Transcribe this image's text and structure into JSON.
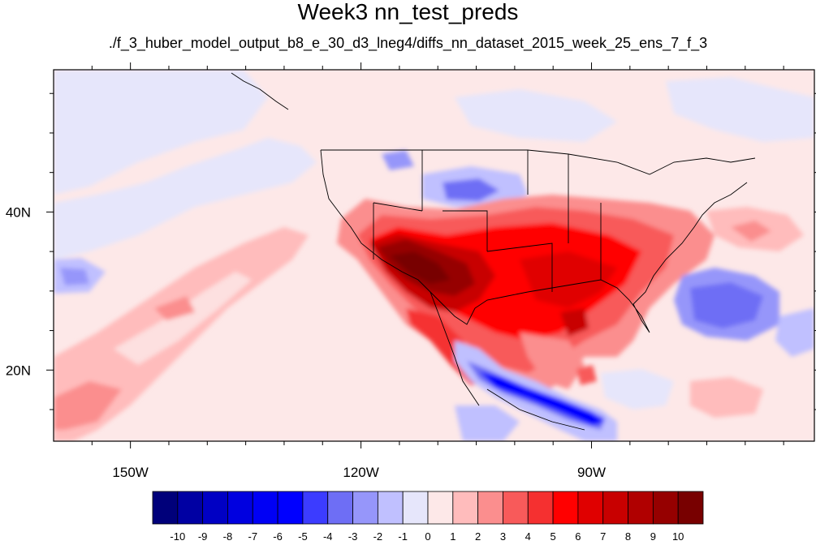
{
  "title": "Week3 nn_test_preds",
  "subtitle": "./f_3_huber_model_output_b8_e_30_d3_lneg4/diffs_nn_dataset_2015_week_25_ens_7_f_3",
  "map": {
    "projection": "cylindrical equidistant",
    "lon_range": [
      -160,
      -61
    ],
    "lat_range": [
      11,
      58
    ],
    "x_ticks": [
      {
        "lon": -150,
        "label": "150W"
      },
      {
        "lon": -120,
        "label": "120W"
      },
      {
        "lon": -90,
        "label": "90W"
      }
    ],
    "y_ticks": [
      {
        "lat": 20,
        "label": "20N"
      },
      {
        "lat": 40,
        "label": "40N"
      }
    ],
    "regions": [
      {
        "name": "pacific-positive-band",
        "value": 2,
        "lon": -138,
        "lat": 24
      },
      {
        "name": "southwest-us-max",
        "value": 9,
        "lon": -112,
        "lat": 34
      },
      {
        "name": "central-us-warm",
        "value": 6,
        "lon": -96,
        "lat": 35
      },
      {
        "name": "southeast-us-warm",
        "value": 6,
        "lon": -90,
        "lat": 31
      },
      {
        "name": "north-plains-negative",
        "value": -4,
        "lon": -107,
        "lat": 44
      },
      {
        "name": "central-america-negative",
        "value": -8,
        "lon": -94,
        "lat": 17
      },
      {
        "name": "atlantic-negative",
        "value": -4,
        "lon": -73,
        "lat": 30
      },
      {
        "name": "eastern-pacific-negative",
        "value": -2,
        "lon": -157,
        "lat": 34
      }
    ]
  },
  "colorbar": {
    "labels": [
      "-10",
      "-9",
      "-8",
      "-7",
      "-6",
      "-5",
      "-4",
      "-3",
      "-2",
      "-1",
      "0",
      "1",
      "2",
      "3",
      "4",
      "5",
      "6",
      "7",
      "8",
      "9",
      "10"
    ],
    "colors": [
      "#00007a",
      "#0000a3",
      "#0000c4",
      "#0000e0",
      "#0000f5",
      "#0000ff",
      "#3c3cff",
      "#6e6ef5",
      "#9696fa",
      "#c0c0ff",
      "#e6e6fb",
      "#fde8e8",
      "#ffbcbc",
      "#fb8e8e",
      "#f85a5a",
      "#f53030",
      "#ff0000",
      "#e00000",
      "#c80000",
      "#b00000",
      "#960000",
      "#780000"
    ]
  }
}
